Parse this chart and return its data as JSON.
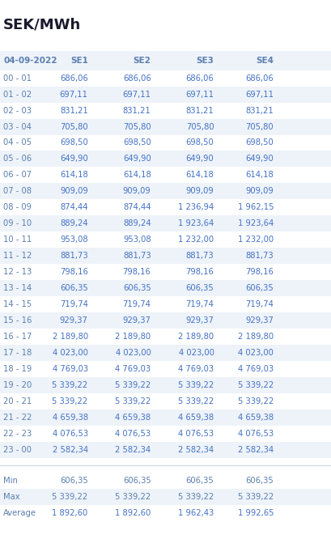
{
  "title": "SEK/MWh",
  "date_col": "04-09-2022",
  "headers": [
    "SE1",
    "SE2",
    "SE3",
    "SE4"
  ],
  "hours": [
    "00 - 01",
    "01 - 02",
    "02 - 03",
    "03 - 04",
    "04 - 05",
    "05 - 06",
    "06 - 07",
    "07 - 08",
    "08 - 09",
    "09 - 10",
    "10 - 11",
    "11 - 12",
    "12 - 13",
    "13 - 14",
    "14 - 15",
    "15 - 16",
    "16 - 17",
    "17 - 18",
    "18 - 19",
    "19 - 20",
    "20 - 21",
    "21 - 22",
    "22 - 23",
    "23 - 00"
  ],
  "data": [
    [
      "686,06",
      "686,06",
      "686,06",
      "686,06"
    ],
    [
      "697,11",
      "697,11",
      "697,11",
      "697,11"
    ],
    [
      "831,21",
      "831,21",
      "831,21",
      "831,21"
    ],
    [
      "705,80",
      "705,80",
      "705,80",
      "705,80"
    ],
    [
      "698,50",
      "698,50",
      "698,50",
      "698,50"
    ],
    [
      "649,90",
      "649,90",
      "649,90",
      "649,90"
    ],
    [
      "614,18",
      "614,18",
      "614,18",
      "614,18"
    ],
    [
      "909,09",
      "909,09",
      "909,09",
      "909,09"
    ],
    [
      "874,44",
      "874,44",
      "1 236,94",
      "1 962,15"
    ],
    [
      "889,24",
      "889,24",
      "1 923,64",
      "1 923,64"
    ],
    [
      "953,08",
      "953,08",
      "1 232,00",
      "1 232,00"
    ],
    [
      "881,73",
      "881,73",
      "881,73",
      "881,73"
    ],
    [
      "798,16",
      "798,16",
      "798,16",
      "798,16"
    ],
    [
      "606,35",
      "606,35",
      "606,35",
      "606,35"
    ],
    [
      "719,74",
      "719,74",
      "719,74",
      "719,74"
    ],
    [
      "929,37",
      "929,37",
      "929,37",
      "929,37"
    ],
    [
      "2 189,80",
      "2 189,80",
      "2 189,80",
      "2 189,80"
    ],
    [
      "4 023,00",
      "4 023,00",
      "4 023,00",
      "4 023,00"
    ],
    [
      "4 769,03",
      "4 769,03",
      "4 769,03",
      "4 769,03"
    ],
    [
      "5 339,22",
      "5 339,22",
      "5 339,22",
      "5 339,22"
    ],
    [
      "5 339,22",
      "5 339,22",
      "5 339,22",
      "5 339,22"
    ],
    [
      "4 659,38",
      "4 659,38",
      "4 659,38",
      "4 659,38"
    ],
    [
      "4 076,53",
      "4 076,53",
      "4 076,53",
      "4 076,53"
    ],
    [
      "2 582,34",
      "2 582,34",
      "2 582,34",
      "2 582,34"
    ]
  ],
  "stats": {
    "labels": [
      "Min",
      "Max",
      "Average"
    ],
    "values": [
      [
        "606,35",
        "606,35",
        "606,35",
        "606,35"
      ],
      [
        "5 339,22",
        "5 339,22",
        "5 339,22",
        "5 339,22"
      ],
      [
        "1 892,60",
        "1 892,60",
        "1 962,43",
        "1 992,65"
      ]
    ]
  },
  "bg_color": "#ffffff",
  "alt_row_color": "#eef3fa",
  "header_color": "#5b7faf",
  "data_color": "#4472c4",
  "date_color": "#5b7faf",
  "title_color": "#1a1a2e",
  "stat_label_color": "#5b7faf",
  "stat_value_color": "#4472c4",
  "separator_color": "#c8d4e8"
}
